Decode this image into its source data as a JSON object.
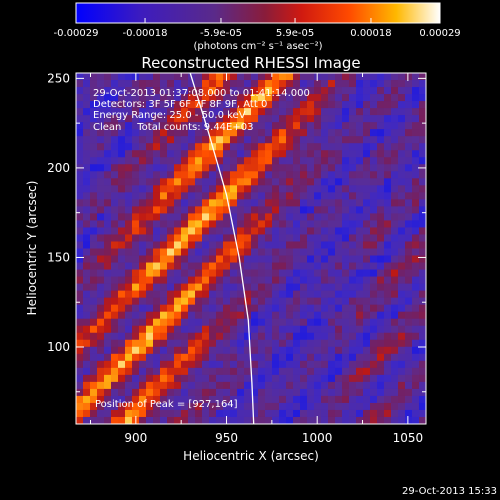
{
  "colorbar": {
    "ticks": [
      "-0.00029",
      "-0.00018",
      "-5.9e-05",
      "5.9e-05",
      "0.00018",
      "0.00029"
    ],
    "tick_values": [
      -0.00029,
      -0.00018,
      -5.9e-05,
      5.9e-05,
      0.00018,
      0.00029
    ],
    "range": [
      -0.00029,
      0.00029
    ],
    "unit_label": "(photons cm⁻² s⁻¹ asec⁻²)",
    "colors": [
      "#0000ff",
      "#3d1cbe",
      "#5a2a8a",
      "#b51a1a",
      "#ff3c00",
      "#ffb800",
      "#ffffff"
    ]
  },
  "chart_data": {
    "type": "heatmap",
    "title": "Reconstructed RHESSI Image",
    "xlabel": "Heliocentric X (arcsec)",
    "ylabel": "Heliocentric Y (arcsec)",
    "xlim": [
      867,
      1060
    ],
    "ylim": [
      57,
      253
    ],
    "xticks": [
      900,
      950,
      1000,
      1050
    ],
    "yticks": [
      100,
      150,
      200,
      250
    ],
    "xtick_labels": [
      "900",
      "950",
      "1000",
      "1050"
    ],
    "ytick_labels": [
      "100",
      "150",
      "200",
      "250"
    ],
    "annotations": [
      "29-Oct-2013 01:37:08.000 to 01:41:14.000",
      "Detectors: 3F 5F 6F 7F 8F 9F, Att 0",
      "Energy Range: 25.0 - 50.0 keV",
      "Clean     Total counts: 9.44E+03"
    ],
    "peak_label": "Position of Peak = [927,164]",
    "peak_position": [
      927,
      164
    ],
    "limb_curve": [
      [
        930,
        253
      ],
      [
        940,
        220
      ],
      [
        950,
        185
      ],
      [
        957,
        150
      ],
      [
        962,
        115
      ],
      [
        964,
        80
      ],
      [
        965,
        57
      ]
    ]
  },
  "footer": {
    "timestamp": "29-Oct-2013 15:33"
  }
}
